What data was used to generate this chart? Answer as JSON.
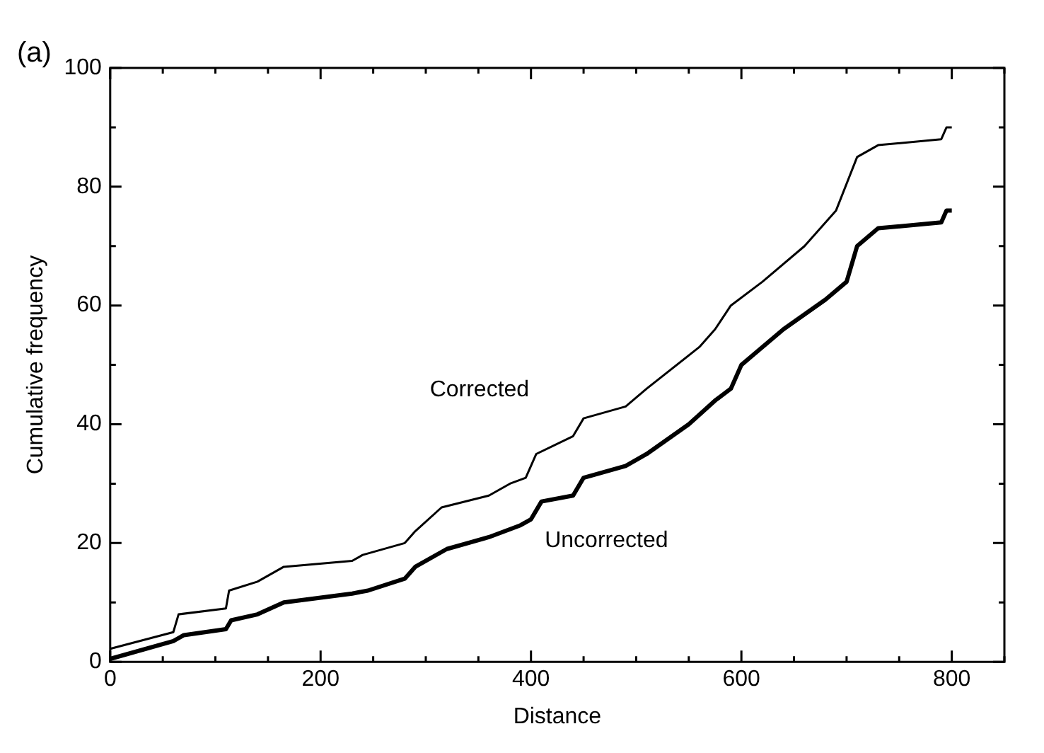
{
  "chart_data": {
    "type": "line",
    "xlabel": "Distance",
    "ylabel": "Cumulative frequency",
    "annotations": [
      "(a)"
    ],
    "xlim": [
      0,
      850
    ],
    "ylim": [
      0,
      100
    ],
    "xticks": [
      0,
      200,
      400,
      600,
      800
    ],
    "yticks": [
      0,
      20,
      40,
      60,
      80,
      100
    ],
    "grid": false,
    "legend": false,
    "marker": "none",
    "line_style": "solid",
    "series": [
      {
        "name": "Corrected",
        "color": "#000000",
        "x": [
          0,
          60,
          65,
          110,
          113,
          140,
          165,
          230,
          240,
          280,
          290,
          315,
          360,
          380,
          395,
          405,
          440,
          450,
          490,
          510,
          560,
          575,
          590,
          620,
          660,
          690,
          710,
          730,
          790,
          795,
          800
        ],
        "values": [
          2.2,
          5,
          8,
          9,
          12,
          13.5,
          16,
          17,
          18,
          20,
          22,
          26,
          28,
          30,
          31,
          35,
          38,
          41,
          43,
          46,
          53,
          56,
          60,
          64,
          70,
          76,
          85,
          87,
          88,
          90,
          90
        ]
      },
      {
        "name": "Uncorrected",
        "color": "#000000",
        "x": [
          0,
          60,
          70,
          110,
          115,
          140,
          165,
          230,
          245,
          280,
          290,
          320,
          360,
          390,
          400,
          410,
          440,
          450,
          490,
          510,
          550,
          575,
          590,
          600,
          640,
          680,
          700,
          710,
          730,
          790,
          795,
          800
        ],
        "values": [
          0.5,
          3.5,
          4.5,
          5.5,
          7,
          8,
          10,
          11.5,
          12,
          14,
          16,
          19,
          21,
          23,
          24,
          27,
          28,
          31,
          33,
          35,
          40,
          44,
          46,
          50,
          56,
          61,
          64,
          70,
          73,
          74,
          76,
          76
        ]
      }
    ]
  }
}
